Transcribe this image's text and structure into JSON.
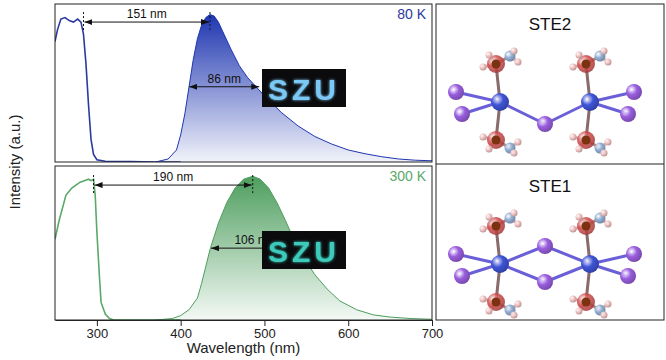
{
  "chart_data": [
    {
      "type": "line",
      "title": "80 K",
      "color": "#2b3a9e",
      "ylabel": "Intensity (a.u.)",
      "xlim": [
        250,
        700
      ],
      "ylim": [
        0,
        1.05
      ],
      "tick_labels": false,
      "series": [
        {
          "type": "line",
          "color": "#2b3a9e",
          "x": [
            250,
            253,
            257,
            262,
            267,
            272,
            277,
            281,
            284,
            287,
            290,
            293,
            296,
            300,
            310,
            340,
            370,
            400
          ],
          "values": [
            0.8,
            0.88,
            0.95,
            0.96,
            0.94,
            0.93,
            0.95,
            0.93,
            0.85,
            0.65,
            0.38,
            0.15,
            0.05,
            0.015,
            0.005,
            0.003,
            0.0,
            0.0
          ]
        },
        {
          "type": "area",
          "color": "#1f36b0",
          "x": [
            370,
            385,
            395,
            400,
            405,
            410,
            415,
            420,
            425,
            430,
            435,
            440,
            445,
            450,
            460,
            470,
            480,
            490,
            500,
            520,
            540,
            560,
            580,
            600,
            620,
            640,
            660,
            680,
            700
          ],
          "values": [
            0.0,
            0.02,
            0.08,
            0.18,
            0.32,
            0.5,
            0.68,
            0.82,
            0.91,
            0.96,
            0.98,
            0.97,
            0.93,
            0.87,
            0.75,
            0.64,
            0.56,
            0.5,
            0.44,
            0.33,
            0.24,
            0.17,
            0.12,
            0.08,
            0.055,
            0.035,
            0.02,
            0.012,
            0.008
          ]
        }
      ],
      "annotations": [
        {
          "text": "151 nm",
          "x1": 284,
          "x2": 435,
          "y": 0.93,
          "line_style": "dashed"
        },
        {
          "text": "86 nm",
          "x1": 409,
          "x2": 495,
          "y": 0.5
        }
      ],
      "inset": {
        "text": "SZU",
        "color": "#7cc8f4"
      }
    },
    {
      "type": "line",
      "title": "300 K",
      "color": "#5aa86a",
      "xlabel": "Wavelength (nm)",
      "xlim": [
        250,
        700
      ],
      "ylim": [
        0,
        1.05
      ],
      "xticks": [
        300,
        400,
        500,
        600,
        700
      ],
      "tick_labels": "x",
      "series": [
        {
          "type": "line",
          "color": "#5aa86a",
          "x": [
            250,
            255,
            263,
            270,
            275,
            280,
            285,
            290,
            293,
            296,
            298,
            300,
            303,
            305,
            310,
            315,
            320,
            350,
            380,
            400
          ],
          "values": [
            0.55,
            0.68,
            0.85,
            0.9,
            0.92,
            0.94,
            0.95,
            0.96,
            0.95,
            0.96,
            0.85,
            0.6,
            0.3,
            0.12,
            0.04,
            0.01,
            0.0,
            0.0,
            0.0,
            0.0
          ]
        },
        {
          "type": "area",
          "color": "#4e9e5e",
          "x": [
            370,
            390,
            400,
            410,
            420,
            425,
            435,
            445,
            455,
            465,
            475,
            486,
            495,
            505,
            515,
            525,
            535,
            541,
            550,
            560,
            575,
            590,
            610,
            630,
            650,
            675,
            700
          ],
          "values": [
            0.0,
            0.01,
            0.03,
            0.07,
            0.15,
            0.25,
            0.48,
            0.66,
            0.8,
            0.9,
            0.96,
            0.98,
            0.96,
            0.9,
            0.8,
            0.68,
            0.55,
            0.49,
            0.4,
            0.31,
            0.21,
            0.13,
            0.07,
            0.035,
            0.02,
            0.01,
            0.005
          ]
        }
      ],
      "annotations": [
        {
          "text": "190 nm",
          "x1": 296,
          "x2": 486,
          "y": 0.92,
          "line_style": "dashed"
        },
        {
          "text": "106 nm",
          "x1": 435,
          "x2": 541,
          "y": 0.49
        }
      ],
      "inset": {
        "text": "SZU",
        "color": "#3ccabb"
      }
    }
  ],
  "diagram": {
    "panels": [
      {
        "label": "STE2"
      },
      {
        "label": "STE1"
      }
    ]
  }
}
